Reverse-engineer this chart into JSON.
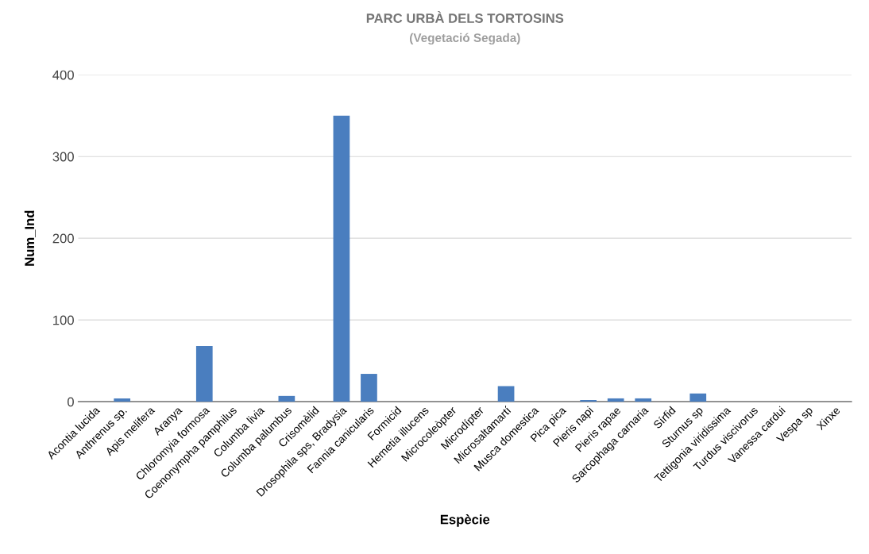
{
  "chart_data": {
    "type": "bar",
    "title": "PARC URBÀ DELS TORTOSINS",
    "subtitle": "(Vegetació Segada)",
    "xlabel": "Espècie",
    "ylabel": "Num_Ind",
    "categories": [
      "Acontia lucida",
      "Anthrenus sp.",
      "Apis melifera",
      "Aranya",
      "Chloromyia formosa",
      "Coenonympha pamphilus",
      "Columba livia",
      "Columba palumbus",
      "Crisomèlid",
      "Drosophila sps, Bradysia",
      "Fannia canicularis",
      "Formicid",
      "Hemetia illucens",
      "Microcoleòpter",
      "Microdípter",
      "Microsaltamartí",
      "Musca domestica",
      "Pica pica",
      "Pieris napi",
      "Pieris rapae",
      "Sarcophaga carnaria",
      "Sírfid",
      "Sturnus sp",
      "Tettigonia viridissima",
      "Turdus viscivorus",
      "Vanessa cardui",
      "Vespa sp",
      "Xinxe"
    ],
    "values": [
      0,
      4,
      0,
      0,
      68,
      0,
      0,
      7,
      0,
      350,
      34,
      0,
      0,
      0,
      0,
      19,
      0,
      0,
      2,
      4,
      4,
      0,
      10,
      0,
      0,
      0,
      0,
      0
    ],
    "color": "#4a7ebf",
    "ylim": [
      0,
      400
    ],
    "yticks": [
      0,
      100,
      200,
      300,
      400
    ],
    "grid": "y"
  }
}
